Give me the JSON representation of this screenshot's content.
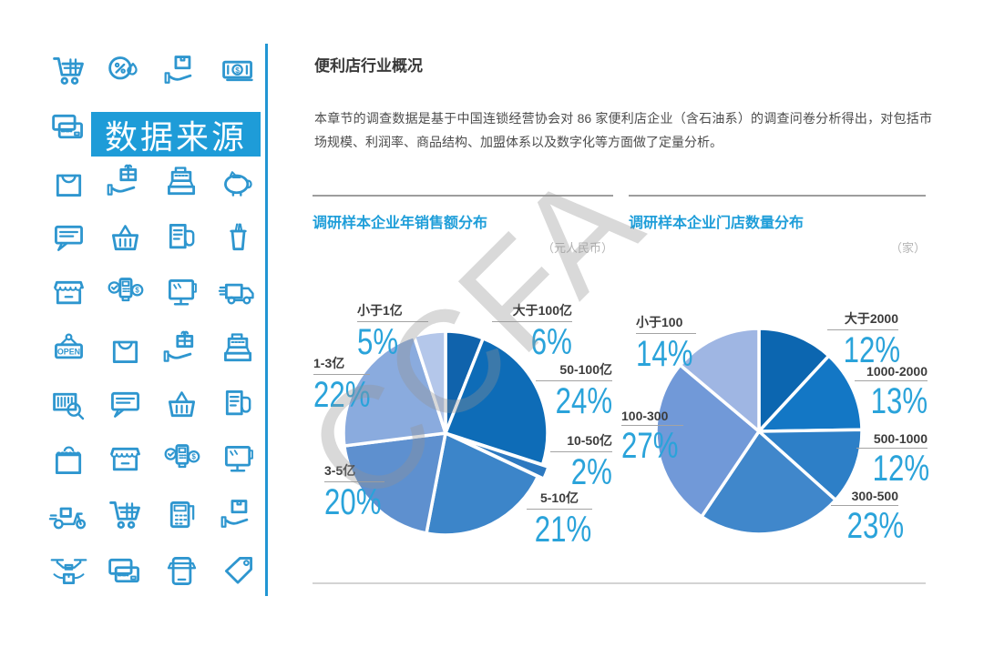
{
  "sidebar": {
    "banner": "数据来源",
    "icon_rows": [
      [
        "shopping-cart",
        "discount-badge",
        "package-hand",
        "banknote"
      ],
      [
        "credit-cards",
        null,
        null,
        null
      ],
      [
        "shopping-bag",
        "gift-hand",
        "cash-register",
        "piggy-bank"
      ],
      [
        "chat-bubble",
        "shopping-basket",
        "receipt-roll",
        "drink-cup"
      ],
      [
        "storefront",
        "payment-terminal",
        "pos-monitor",
        "delivery-truck"
      ],
      [
        "open-sign",
        "shopping-bag",
        "gift-hand",
        "cash-register"
      ],
      [
        "barcode-search",
        "chat-bubble",
        "shopping-basket",
        "receipt-roll"
      ],
      [
        "grocery-bag",
        "storefront",
        "payment-terminal",
        "pos-monitor"
      ],
      [
        "delivery-scooter",
        "shopping-cart",
        "calculator-receipt",
        "package-hand"
      ],
      [
        "delivery-drone",
        "credit-cards",
        "mobile-shop",
        "price-tag"
      ]
    ]
  },
  "main": {
    "title": "便利店行业概况",
    "intro": "本章节的调查数据是基于中国连锁经营协会对 86 家便利店企业（含石油系）的调查问卷分析得出，对包括市场规模、利润率、商品结构、加盟体系以及数字化等方面做了定量分析。",
    "watermark": "CCFA"
  },
  "chart_data": [
    {
      "type": "pie",
      "title": "调研样本企业年销售额分布",
      "unit": "（元人民币）",
      "start_angle": "top",
      "direction": "clockwise",
      "labels_position": "outside",
      "labels": [
        "大于100亿",
        "50-100亿",
        "10-50亿",
        "5-10亿",
        "3-5亿",
        "1-3亿",
        "小于1亿"
      ],
      "values": [
        6,
        24,
        2,
        21,
        20,
        22,
        5
      ],
      "colors": [
        "#1063ac",
        "#0e6cb7",
        "#2d79c0",
        "#3c85c9",
        "#5e90cf",
        "#8aabde",
        "#b4c7ea"
      ],
      "percent_color": "#2aa3da"
    },
    {
      "type": "pie",
      "title": "调研样本企业门店数量分布",
      "unit": "（家）",
      "start_angle": "top",
      "direction": "clockwise",
      "labels_position": "outside",
      "labels": [
        "大于2000",
        "1000-2000",
        "500-1000",
        "300-500",
        "100-300",
        "小于100"
      ],
      "values": [
        12,
        13,
        12,
        23,
        27,
        14
      ],
      "colors": [
        "#0c66b0",
        "#1377c5",
        "#2d7fc7",
        "#4087cb",
        "#7199d8",
        "#9fb6e3"
      ],
      "percent_color": "#2aa3da"
    }
  ]
}
